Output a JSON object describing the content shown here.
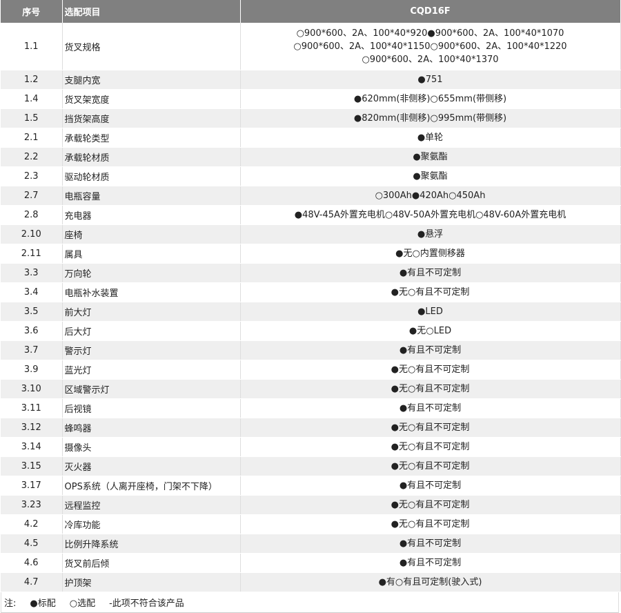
{
  "header": {
    "col_no": "序号",
    "col_item": "选配项目",
    "col_model": "CQD16F"
  },
  "rows": [
    {
      "no": "1.1",
      "item": "货叉规格",
      "lines": [
        "○900*600、2A、100*40*920●900*600、2A、100*40*1070",
        "○900*600、2A、100*40*1150○900*600、2A、100*40*1220",
        "○900*600、2A、100*40*1370"
      ]
    },
    {
      "no": "1.2",
      "item": "支腿内宽",
      "lines": [
        "●751"
      ]
    },
    {
      "no": "1.4",
      "item": "货叉架宽度",
      "lines": [
        "●620mm(非侧移)○655mm(带侧移)"
      ]
    },
    {
      "no": "1.5",
      "item": "挡货架高度",
      "lines": [
        "●820mm(非侧移)○995mm(带侧移)"
      ]
    },
    {
      "no": "2.1",
      "item": "承载轮类型",
      "lines": [
        "●单轮"
      ]
    },
    {
      "no": "2.2",
      "item": "承载轮材质",
      "lines": [
        "●聚氨酯"
      ]
    },
    {
      "no": "2.3",
      "item": "驱动轮材质",
      "lines": [
        "●聚氨酯"
      ]
    },
    {
      "no": "2.7",
      "item": "电瓶容量",
      "lines": [
        "○300Ah●420Ah○450Ah"
      ]
    },
    {
      "no": "2.8",
      "item": "充电器",
      "lines": [
        "●48V-45A外置充电机○48V-50A外置充电机○48V-60A外置充电机"
      ]
    },
    {
      "no": "2.10",
      "item": "座椅",
      "lines": [
        "●悬浮"
      ]
    },
    {
      "no": "2.11",
      "item": "属具",
      "lines": [
        "●无○内置侧移器"
      ]
    },
    {
      "no": "3.3",
      "item": "万向轮",
      "lines": [
        "●有且不可定制"
      ]
    },
    {
      "no": "3.4",
      "item": "电瓶补水装置",
      "lines": [
        "●无○有且不可定制"
      ]
    },
    {
      "no": "3.5",
      "item": "前大灯",
      "lines": [
        "●LED"
      ]
    },
    {
      "no": "3.6",
      "item": "后大灯",
      "lines": [
        "●无○LED"
      ]
    },
    {
      "no": "3.7",
      "item": "警示灯",
      "lines": [
        "●有且不可定制"
      ]
    },
    {
      "no": "3.9",
      "item": "蓝光灯",
      "lines": [
        "●无○有且不可定制"
      ]
    },
    {
      "no": "3.10",
      "item": "区域警示灯",
      "lines": [
        "●无○有且不可定制"
      ]
    },
    {
      "no": "3.11",
      "item": "后视镜",
      "lines": [
        "●有且不可定制"
      ]
    },
    {
      "no": "3.12",
      "item": "蜂鸣器",
      "lines": [
        "●无○有且不可定制"
      ]
    },
    {
      "no": "3.14",
      "item": "摄像头",
      "lines": [
        "●无○有且不可定制"
      ]
    },
    {
      "no": "3.15",
      "item": "灭火器",
      "lines": [
        "●无○有且不可定制"
      ]
    },
    {
      "no": "3.17",
      "item": "OPS系统（人离开座椅，门架不下降）",
      "lines": [
        "●有且不可定制"
      ]
    },
    {
      "no": "3.23",
      "item": "远程监控",
      "lines": [
        "●无○有且不可定制"
      ]
    },
    {
      "no": "4.2",
      "item": "冷库功能",
      "lines": [
        "●无○有且不可定制"
      ]
    },
    {
      "no": "4.5",
      "item": "比例升降系统",
      "lines": [
        "●有且不可定制"
      ]
    },
    {
      "no": "4.6",
      "item": "货叉前后倾",
      "lines": [
        "●有且不可定制"
      ]
    },
    {
      "no": "4.7",
      "item": "护顶架",
      "lines": [
        "●有○有且可定制(驶入式)"
      ]
    }
  ],
  "note": {
    "label": "注:",
    "standard": "●标配",
    "optional": "○选配",
    "na": "-此项不符合该产品"
  }
}
